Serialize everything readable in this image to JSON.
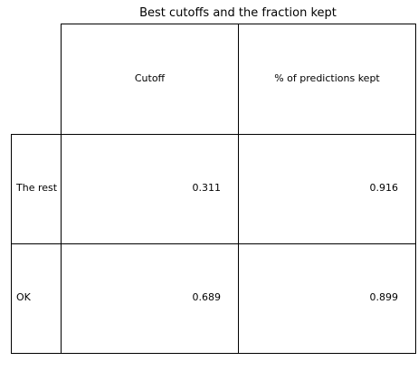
{
  "chart_data": {
    "type": "table",
    "title": "Best cutoffs and the fraction kept",
    "columns": [
      "Cutoff",
      "% of predictions kept"
    ],
    "rows": [
      {
        "label": "The rest",
        "values": [
          "0.311",
          "0.916"
        ]
      },
      {
        "label": "OK",
        "values": [
          "0.689",
          "0.899"
        ]
      }
    ]
  }
}
